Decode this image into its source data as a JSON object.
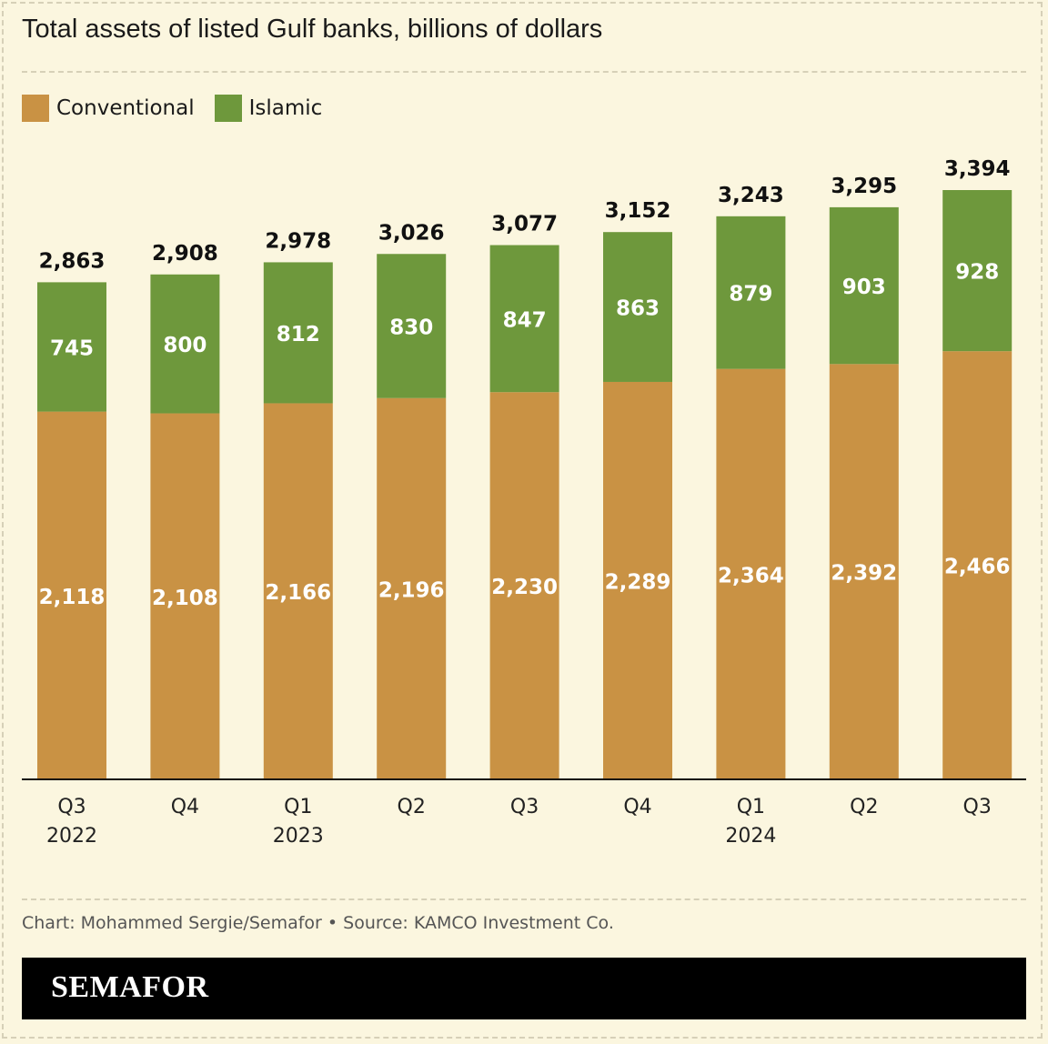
{
  "title": "Total assets of listed Gulf banks, billions of dollars",
  "legend": [
    {
      "label": "Conventional",
      "color": "#c99244"
    },
    {
      "label": "Islamic",
      "color": "#6e983c"
    }
  ],
  "credit": "Chart: Mohammed Sergie/Semafor • Source: KAMCO Investment Co.",
  "brand": "SEMAFOR",
  "chart_data": {
    "type": "bar",
    "stacked": true,
    "title": "Total assets of listed Gulf banks, billions of dollars",
    "categories": [
      "Q3",
      "Q4",
      "Q1",
      "Q2",
      "Q3",
      "Q4",
      "Q1",
      "Q2",
      "Q3"
    ],
    "category_years": [
      "2022",
      "",
      "2023",
      "",
      "",
      "",
      "2024",
      "",
      ""
    ],
    "series": [
      {
        "name": "Conventional",
        "color": "#c99244",
        "values": [
          2118,
          2108,
          2166,
          2196,
          2230,
          2289,
          2364,
          2392,
          2466
        ]
      },
      {
        "name": "Islamic",
        "color": "#6e983c",
        "values": [
          745,
          800,
          812,
          830,
          847,
          863,
          879,
          903,
          928
        ]
      }
    ],
    "totals": [
      2863,
      2908,
      2978,
      3026,
      3077,
      3152,
      3243,
      3295,
      3394
    ],
    "ylim": [
      0,
      3394
    ],
    "xlabel": "",
    "ylabel": "",
    "grid": false,
    "legend_position": "top-left"
  }
}
